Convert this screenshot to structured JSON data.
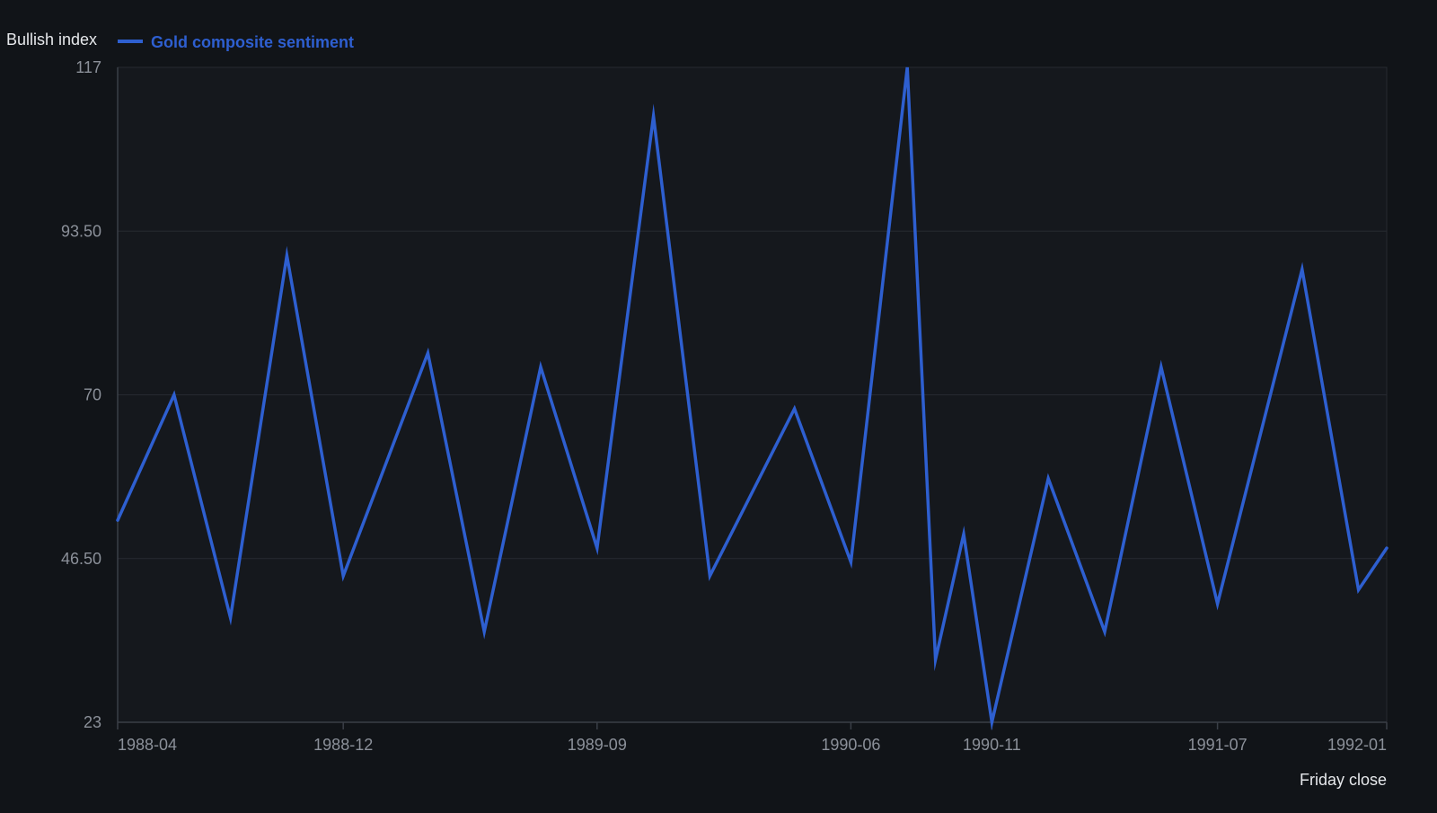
{
  "chart_data": {
    "type": "line",
    "ylabel": "Bullish index",
    "xlabel": "Friday close",
    "ylim": [
      23,
      117
    ],
    "y_ticks": [
      "23",
      "46.50",
      "70",
      "93.50",
      "117"
    ],
    "x_ticks": [
      "1988-04",
      "1988-12",
      "1989-09",
      "1990-06",
      "1990-11",
      "1991-07",
      "1992-01"
    ],
    "x_range": [
      "1988-04",
      "1992-01"
    ],
    "grid": true,
    "legend_position": "top-left",
    "colors": {
      "background": "#111418",
      "plot_background": "#15181d",
      "grid": "#262a31",
      "axis": "#3a3f47",
      "series": "#2e5fd0"
    },
    "series": [
      {
        "name": "Gold composite sentiment",
        "points": [
          {
            "x": "1988-04-01",
            "y": 52
          },
          {
            "x": "1988-06-01",
            "y": 70
          },
          {
            "x": "1988-08-01",
            "y": 38
          },
          {
            "x": "1988-10-01",
            "y": 90
          },
          {
            "x": "1988-12-01",
            "y": 44
          },
          {
            "x": "1989-03-01",
            "y": 76
          },
          {
            "x": "1989-05-01",
            "y": 36
          },
          {
            "x": "1989-07-01",
            "y": 74
          },
          {
            "x": "1989-09-01",
            "y": 48
          },
          {
            "x": "1989-11-01",
            "y": 110
          },
          {
            "x": "1990-01-01",
            "y": 44
          },
          {
            "x": "1990-04-01",
            "y": 68
          },
          {
            "x": "1990-06-01",
            "y": 46
          },
          {
            "x": "1990-08-01",
            "y": 117
          },
          {
            "x": "1990-09-01",
            "y": 32
          },
          {
            "x": "1990-10-01",
            "y": 50
          },
          {
            "x": "1990-11-01",
            "y": 23
          },
          {
            "x": "1991-01-01",
            "y": 58
          },
          {
            "x": "1991-03-01",
            "y": 36
          },
          {
            "x": "1991-05-01",
            "y": 74
          },
          {
            "x": "1991-07-01",
            "y": 40
          },
          {
            "x": "1991-10-01",
            "y": 88
          },
          {
            "x": "1991-12-01",
            "y": 42
          },
          {
            "x": "1992-01-01",
            "y": 48
          }
        ]
      }
    ]
  }
}
